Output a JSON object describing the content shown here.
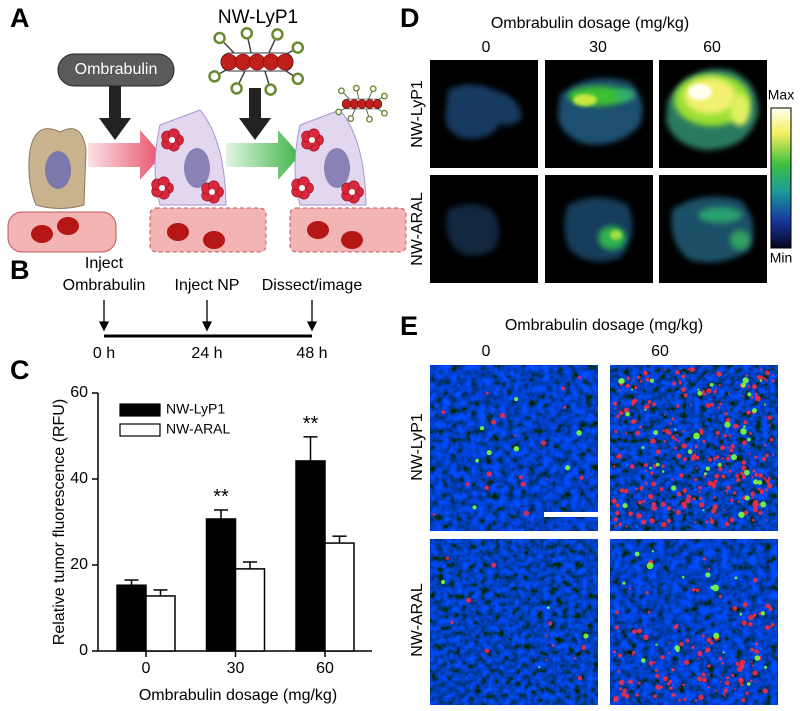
{
  "panel_a": {
    "label": "A",
    "drug": "Ombrabulin",
    "nanoparticle": "NW-LyP1"
  },
  "panel_b": {
    "label": "B",
    "events": [
      [
        "Inject",
        "Ombrabulin"
      ],
      [
        "Inject NP"
      ],
      [
        "Dissect/image"
      ]
    ],
    "times": [
      "0 h",
      "24 h",
      "48 h"
    ]
  },
  "panel_c": {
    "label": "C"
  },
  "chart_data": {
    "type": "bar",
    "ylabel": "Relative tumor fluorescence (RFU)",
    "xlabel": "Ombrabulin dosage (mg/kg)",
    "categories": [
      "0",
      "30",
      "60"
    ],
    "series": [
      {
        "name": "NW-LyP1",
        "color": "#000000",
        "values": [
          15.3,
          30.7,
          44.2
        ],
        "errors": [
          1.2,
          2.1,
          5.6
        ],
        "significance": [
          null,
          "**",
          "**"
        ]
      },
      {
        "name": "NW-ARAL",
        "color": "#ffffff",
        "values": [
          12.8,
          19.1,
          25.1
        ],
        "errors": [
          1.4,
          1.6,
          1.6
        ]
      }
    ],
    "ylim": [
      0,
      60
    ],
    "yticks": [
      0,
      20,
      40,
      60
    ],
    "grid": false
  },
  "panel_d": {
    "label": "D",
    "title": "Ombrabulin dosage (mg/kg)",
    "columns": [
      "0",
      "30",
      "60"
    ],
    "rows": [
      "NW-LyP1",
      "NW-ARAL"
    ],
    "colorbar": {
      "max": "Max",
      "min": "Min"
    }
  },
  "panel_e": {
    "label": "E",
    "title": "Ombrabulin dosage (mg/kg)",
    "columns": [
      "0",
      "60"
    ],
    "rows": [
      "NW-LyP1",
      "NW-ARAL"
    ]
  }
}
